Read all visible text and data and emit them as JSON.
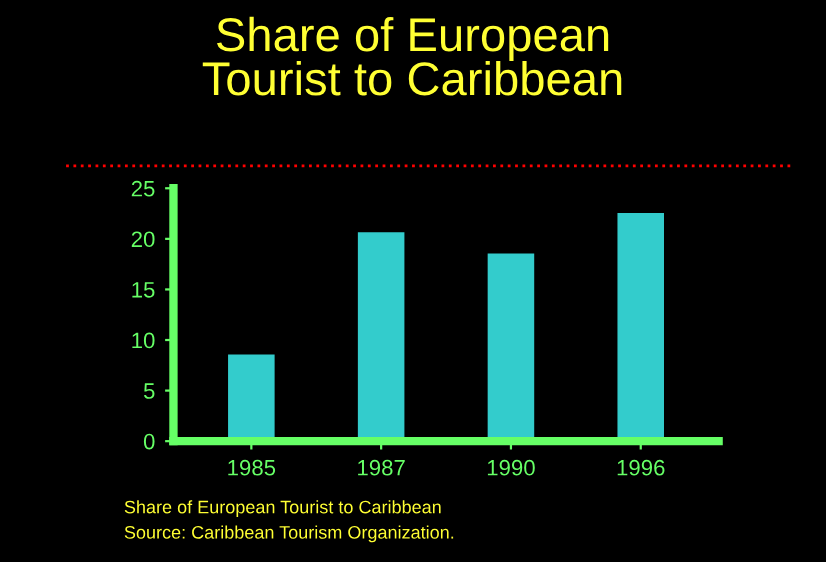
{
  "chart_data": {
    "type": "bar",
    "title": "Share of European\nTourist to Caribbean",
    "categories": [
      "1985",
      "1987",
      "1990",
      "1996"
    ],
    "values": [
      8.7,
      20.8,
      18.7,
      22.7
    ],
    "color": "#33cccc",
    "ylim": [
      0,
      25
    ],
    "yticks": [
      0,
      5,
      10,
      15,
      20,
      25
    ],
    "grid": false,
    "annotations": [
      "Share of European Tourist to Caribbean",
      "Source: Caribbean Tourism Organization."
    ]
  }
}
